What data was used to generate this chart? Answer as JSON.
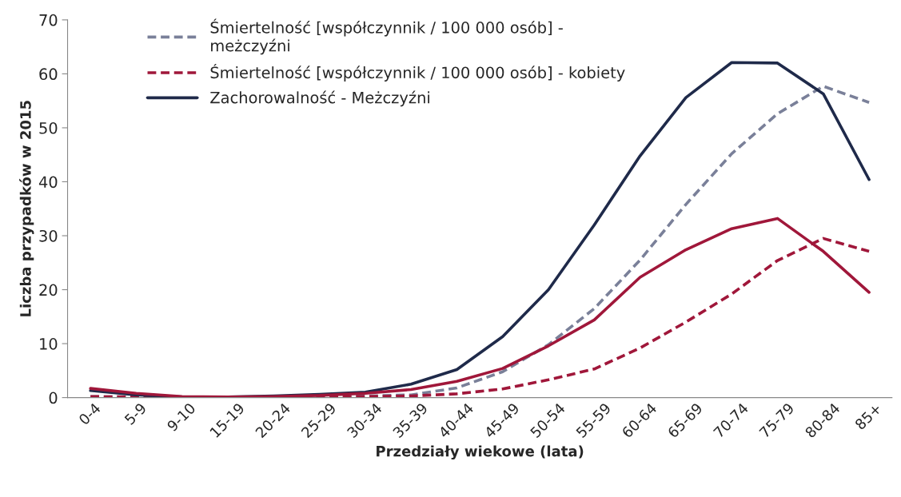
{
  "chart_data": {
    "type": "line",
    "xlabel": "Przedziały wiekowe (lata)",
    "ylabel": "Liczba przypadków w 2015",
    "categories": [
      "0-4",
      "5-9",
      "9-10",
      "15-19",
      "20-24",
      "25-29",
      "30-34",
      "35-39",
      "40-44",
      "45-49",
      "50-54",
      "55-59",
      "60-64",
      "65-69",
      "70-74",
      "75-79",
      "80-84",
      "85+"
    ],
    "series": [
      {
        "name": "Śmiertelność [współczynnik / 100 000 osób] - meżczyźni",
        "color": "#7a8099",
        "line_style": "dashed",
        "values": [
          0.2,
          0.1,
          0,
          0,
          0,
          0.1,
          0.3,
          0.5,
          1.8,
          4.8,
          9.8,
          16.5,
          25.5,
          35.8,
          45.2,
          52.6,
          57.7,
          54.7
        ]
      },
      {
        "name": "Śmiertelność [współczynnik / 100 000 osób] - kobiety",
        "color": "#a0173a",
        "line_style": "dashed",
        "values": [
          0.2,
          0.1,
          0,
          0,
          0,
          0.1,
          0.2,
          0.3,
          0.7,
          1.6,
          3.3,
          5.3,
          9.2,
          14.0,
          19.2,
          25.4,
          29.5,
          27.1
        ]
      },
      {
        "name": "Zachorowalność - Meżczyźni",
        "color": "#1f2a4a",
        "line_style": "solid",
        "values": [
          1.3,
          0.5,
          0.1,
          0.1,
          0.3,
          0.6,
          1.0,
          2.5,
          5.2,
          11.3,
          20.0,
          32.0,
          44.8,
          55.6,
          62.1,
          62.0,
          56.3,
          40.4
        ]
      },
      {
        "color": "#a0173a",
        "line_style": "solid",
        "values": [
          1.7,
          0.8,
          0.2,
          0.1,
          0.2,
          0.4,
          0.8,
          1.5,
          3.0,
          5.4,
          9.6,
          14.4,
          22.3,
          27.4,
          31.3,
          33.2,
          27.1,
          19.5
        ]
      }
    ],
    "ylim": [
      0,
      70
    ],
    "yticks": [
      0,
      10,
      20,
      30,
      40,
      50,
      60,
      70
    ],
    "legend": "top left"
  }
}
